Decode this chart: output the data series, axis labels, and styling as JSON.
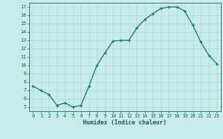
{
  "x": [
    0,
    1,
    2,
    3,
    4,
    5,
    6,
    7,
    8,
    9,
    10,
    11,
    12,
    13,
    14,
    15,
    16,
    17,
    18,
    19,
    20,
    21,
    22,
    23
  ],
  "y": [
    7.5,
    7.0,
    6.5,
    5.2,
    5.5,
    5.0,
    5.2,
    7.5,
    10.0,
    11.5,
    12.9,
    13.0,
    13.0,
    14.5,
    15.5,
    16.2,
    16.8,
    17.0,
    17.0,
    16.5,
    14.8,
    12.8,
    11.2,
    10.2
  ],
  "xlabel": "Humidex (Indice chaleur)",
  "xlim": [
    -0.5,
    23.5
  ],
  "ylim": [
    4.5,
    17.5
  ],
  "yticks": [
    5,
    6,
    7,
    8,
    9,
    10,
    11,
    12,
    13,
    14,
    15,
    16,
    17
  ],
  "xticks": [
    0,
    1,
    2,
    3,
    4,
    5,
    6,
    7,
    8,
    9,
    10,
    11,
    12,
    13,
    14,
    15,
    16,
    17,
    18,
    19,
    20,
    21,
    22,
    23
  ],
  "line_color": "#1a7a6e",
  "bg_color": "#c8ecea",
  "grid_color": "#b0d8d5",
  "text_color": "#1a5a50",
  "xlabel_fontsize": 6.0,
  "tick_fontsize": 5.0
}
